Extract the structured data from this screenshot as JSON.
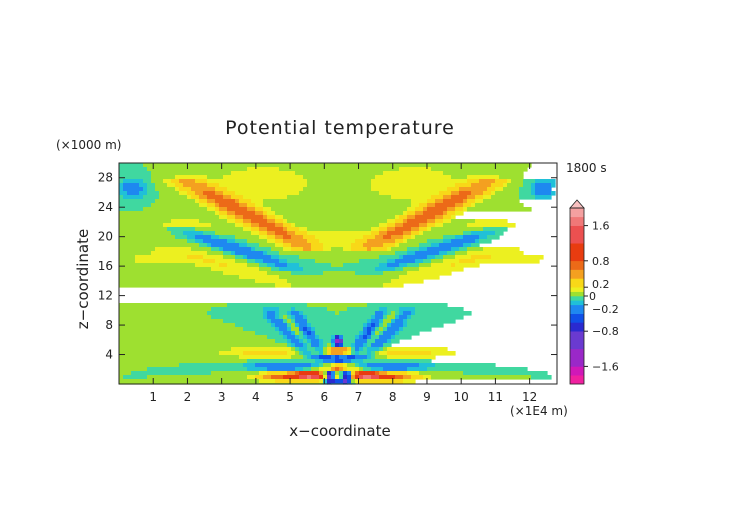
{
  "chart_data": {
    "type": "heatmap",
    "title": "Potential temperature",
    "xlabel": "x−coordinate",
    "ylabel": "z−coordinate",
    "x_unit": "(×1E4 m)",
    "y_unit": "(×1000 m)",
    "time_label": "1800 s",
    "xlim": [
      0,
      12.8
    ],
    "ylim": [
      0,
      30
    ],
    "x_ticks": [
      1,
      2,
      3,
      4,
      5,
      6,
      7,
      8,
      9,
      10,
      11,
      12
    ],
    "y_ticks": [
      4,
      8,
      12,
      16,
      20,
      24,
      28
    ],
    "colorbar": {
      "range": [
        -2.0,
        2.0
      ],
      "tick_values": [
        1.6,
        0.8,
        0.2,
        0,
        -0.2,
        -0.8,
        -1.6
      ],
      "tick_labels": [
        "1.6",
        "0.8",
        "0.2",
        "0",
        "−0.2",
        "−0.8",
        "−1.6"
      ],
      "colors": [
        "#f020a0",
        "#d018b8",
        "#9a28c8",
        "#6a3ad0",
        "#2a2ad0",
        "#1050e8",
        "#1e88f0",
        "#20c0d8",
        "#40d8a0",
        "#9ee030",
        "#ecf020",
        "#f8d818",
        "#f4a020",
        "#ec6a18",
        "#e83c10",
        "#ec5050",
        "#f07878",
        "#f4a0a0",
        "#f8c0c0"
      ],
      "boundaries": [
        -2.0,
        -1.8,
        -1.6,
        -1.2,
        -0.8,
        -0.6,
        -0.4,
        -0.2,
        -0.1,
        0,
        0.1,
        0.2,
        0.4,
        0.6,
        0.8,
        1.2,
        1.6,
        1.8,
        2.0
      ]
    },
    "background_value": 0,
    "features": [
      {
        "kind": "blob",
        "x": 0.4,
        "z": 26.5,
        "sx": 0.35,
        "sz": 1.4,
        "v": -0.35
      },
      {
        "kind": "blob",
        "x": 12.4,
        "z": 26.5,
        "sx": 0.35,
        "sz": 1.4,
        "v": -0.35
      },
      {
        "kind": "blob",
        "x": 4.2,
        "z": 27.2,
        "sx": 1.6,
        "sz": 2.8,
        "v": 0.18
      },
      {
        "kind": "blob",
        "x": 8.6,
        "z": 27.2,
        "sx": 1.6,
        "sz": 2.8,
        "v": 0.18
      },
      {
        "kind": "blob",
        "x": 1.9,
        "z": 21.5,
        "sx": 1.3,
        "sz": 1.3,
        "v": 0.14
      },
      {
        "kind": "blob",
        "x": 10.9,
        "z": 21.5,
        "sx": 1.3,
        "sz": 1.3,
        "v": 0.14
      },
      {
        "kind": "blob",
        "x": 6.4,
        "z": 20.0,
        "sx": 1.6,
        "sz": 1.4,
        "v": 0.12
      },
      {
        "kind": "blob",
        "x": 1.0,
        "z": 17.0,
        "sx": 1.2,
        "sz": 1.0,
        "v": 0.13
      },
      {
        "kind": "blob",
        "x": 11.8,
        "z": 17.0,
        "sx": 1.2,
        "sz": 1.0,
        "v": 0.13
      },
      {
        "kind": "band",
        "x0": 2.0,
        "z0": 27.5,
        "x1": 5.5,
        "z1": 18.5,
        "w": 0.55,
        "v": 0.75
      },
      {
        "kind": "band",
        "x0": 10.8,
        "z0": 27.5,
        "x1": 7.3,
        "z1": 18.5,
        "w": 0.55,
        "v": 0.75
      },
      {
        "kind": "band",
        "x0": 1.8,
        "z0": 21.0,
        "x1": 5.0,
        "z1": 15.8,
        "w": 0.45,
        "v": -0.35
      },
      {
        "kind": "band",
        "x0": 11.0,
        "z0": 21.0,
        "x1": 7.8,
        "z1": 15.8,
        "w": 0.45,
        "v": -0.35
      },
      {
        "kind": "band",
        "x0": 1.5,
        "z0": 18.5,
        "x1": 4.8,
        "z1": 13.5,
        "w": 0.7,
        "v": 0.2
      },
      {
        "kind": "band",
        "x0": 11.3,
        "z0": 18.5,
        "x1": 8.0,
        "z1": 13.5,
        "w": 0.7,
        "v": 0.2
      },
      {
        "kind": "band",
        "x0": 4.4,
        "z0": 10.0,
        "x1": 5.7,
        "z1": 3.5,
        "w": 0.3,
        "v": -0.45
      },
      {
        "kind": "band",
        "x0": 8.4,
        "z0": 10.0,
        "x1": 7.1,
        "z1": 3.5,
        "w": 0.3,
        "v": -0.45
      },
      {
        "kind": "band",
        "x0": 5.1,
        "z0": 10.0,
        "x1": 6.0,
        "z1": 3.5,
        "w": 0.2,
        "v": -0.45
      },
      {
        "kind": "band",
        "x0": 7.7,
        "z0": 10.0,
        "x1": 6.8,
        "z1": 3.5,
        "w": 0.2,
        "v": -0.45
      },
      {
        "kind": "band",
        "x0": 4.7,
        "z0": 9.5,
        "x1": 5.8,
        "z1": 4.0,
        "w": 0.22,
        "v": 0.35
      },
      {
        "kind": "band",
        "x0": 8.1,
        "z0": 9.5,
        "x1": 7.0,
        "z1": 4.0,
        "w": 0.22,
        "v": 0.35
      },
      {
        "kind": "blob",
        "x": 4.3,
        "z": 4.3,
        "sx": 1.4,
        "sz": 0.8,
        "v": 0.25
      },
      {
        "kind": "blob",
        "x": 8.5,
        "z": 4.3,
        "sx": 1.4,
        "sz": 0.8,
        "v": 0.25
      },
      {
        "kind": "blob",
        "x": 4.8,
        "z": 2.4,
        "sx": 1.05,
        "sz": 0.55,
        "v": -0.4
      },
      {
        "kind": "blob",
        "x": 8.0,
        "z": 2.4,
        "sx": 1.05,
        "sz": 0.55,
        "v": -0.4
      },
      {
        "kind": "blob",
        "x": 5.05,
        "z": 1.0,
        "sx": 0.9,
        "sz": 0.55,
        "v": 0.9
      },
      {
        "kind": "blob",
        "x": 7.75,
        "z": 1.0,
        "sx": 0.9,
        "sz": 0.55,
        "v": 0.9
      },
      {
        "kind": "blob",
        "x": 5.6,
        "z": 1.2,
        "sx": 0.35,
        "sz": 0.5,
        "v": 1.3
      },
      {
        "kind": "blob",
        "x": 7.2,
        "z": 1.2,
        "sx": 0.35,
        "sz": 0.5,
        "v": 1.3
      },
      {
        "kind": "blob",
        "x": 6.4,
        "z": 5.8,
        "sx": 0.12,
        "sz": 0.6,
        "v": -1.7
      },
      {
        "kind": "blob",
        "x": 6.4,
        "z": 4.5,
        "sx": 0.35,
        "sz": 0.45,
        "v": 0.8
      },
      {
        "kind": "blob",
        "x": 6.4,
        "z": 3.4,
        "sx": 0.4,
        "sz": 0.35,
        "v": -0.8
      },
      {
        "kind": "blob",
        "x": 6.4,
        "z": 2.2,
        "sx": 0.45,
        "sz": 0.4,
        "v": 0.8
      },
      {
        "kind": "blob",
        "x": 6.15,
        "z": 1.0,
        "sx": 0.12,
        "sz": 0.9,
        "v": -1.2
      },
      {
        "kind": "blob",
        "x": 6.65,
        "z": 1.0,
        "sx": 0.12,
        "sz": 0.9,
        "v": -1.2
      },
      {
        "kind": "blob",
        "x": 6.4,
        "z": 0.4,
        "sx": 0.2,
        "sz": 0.35,
        "v": -0.6
      }
    ]
  }
}
